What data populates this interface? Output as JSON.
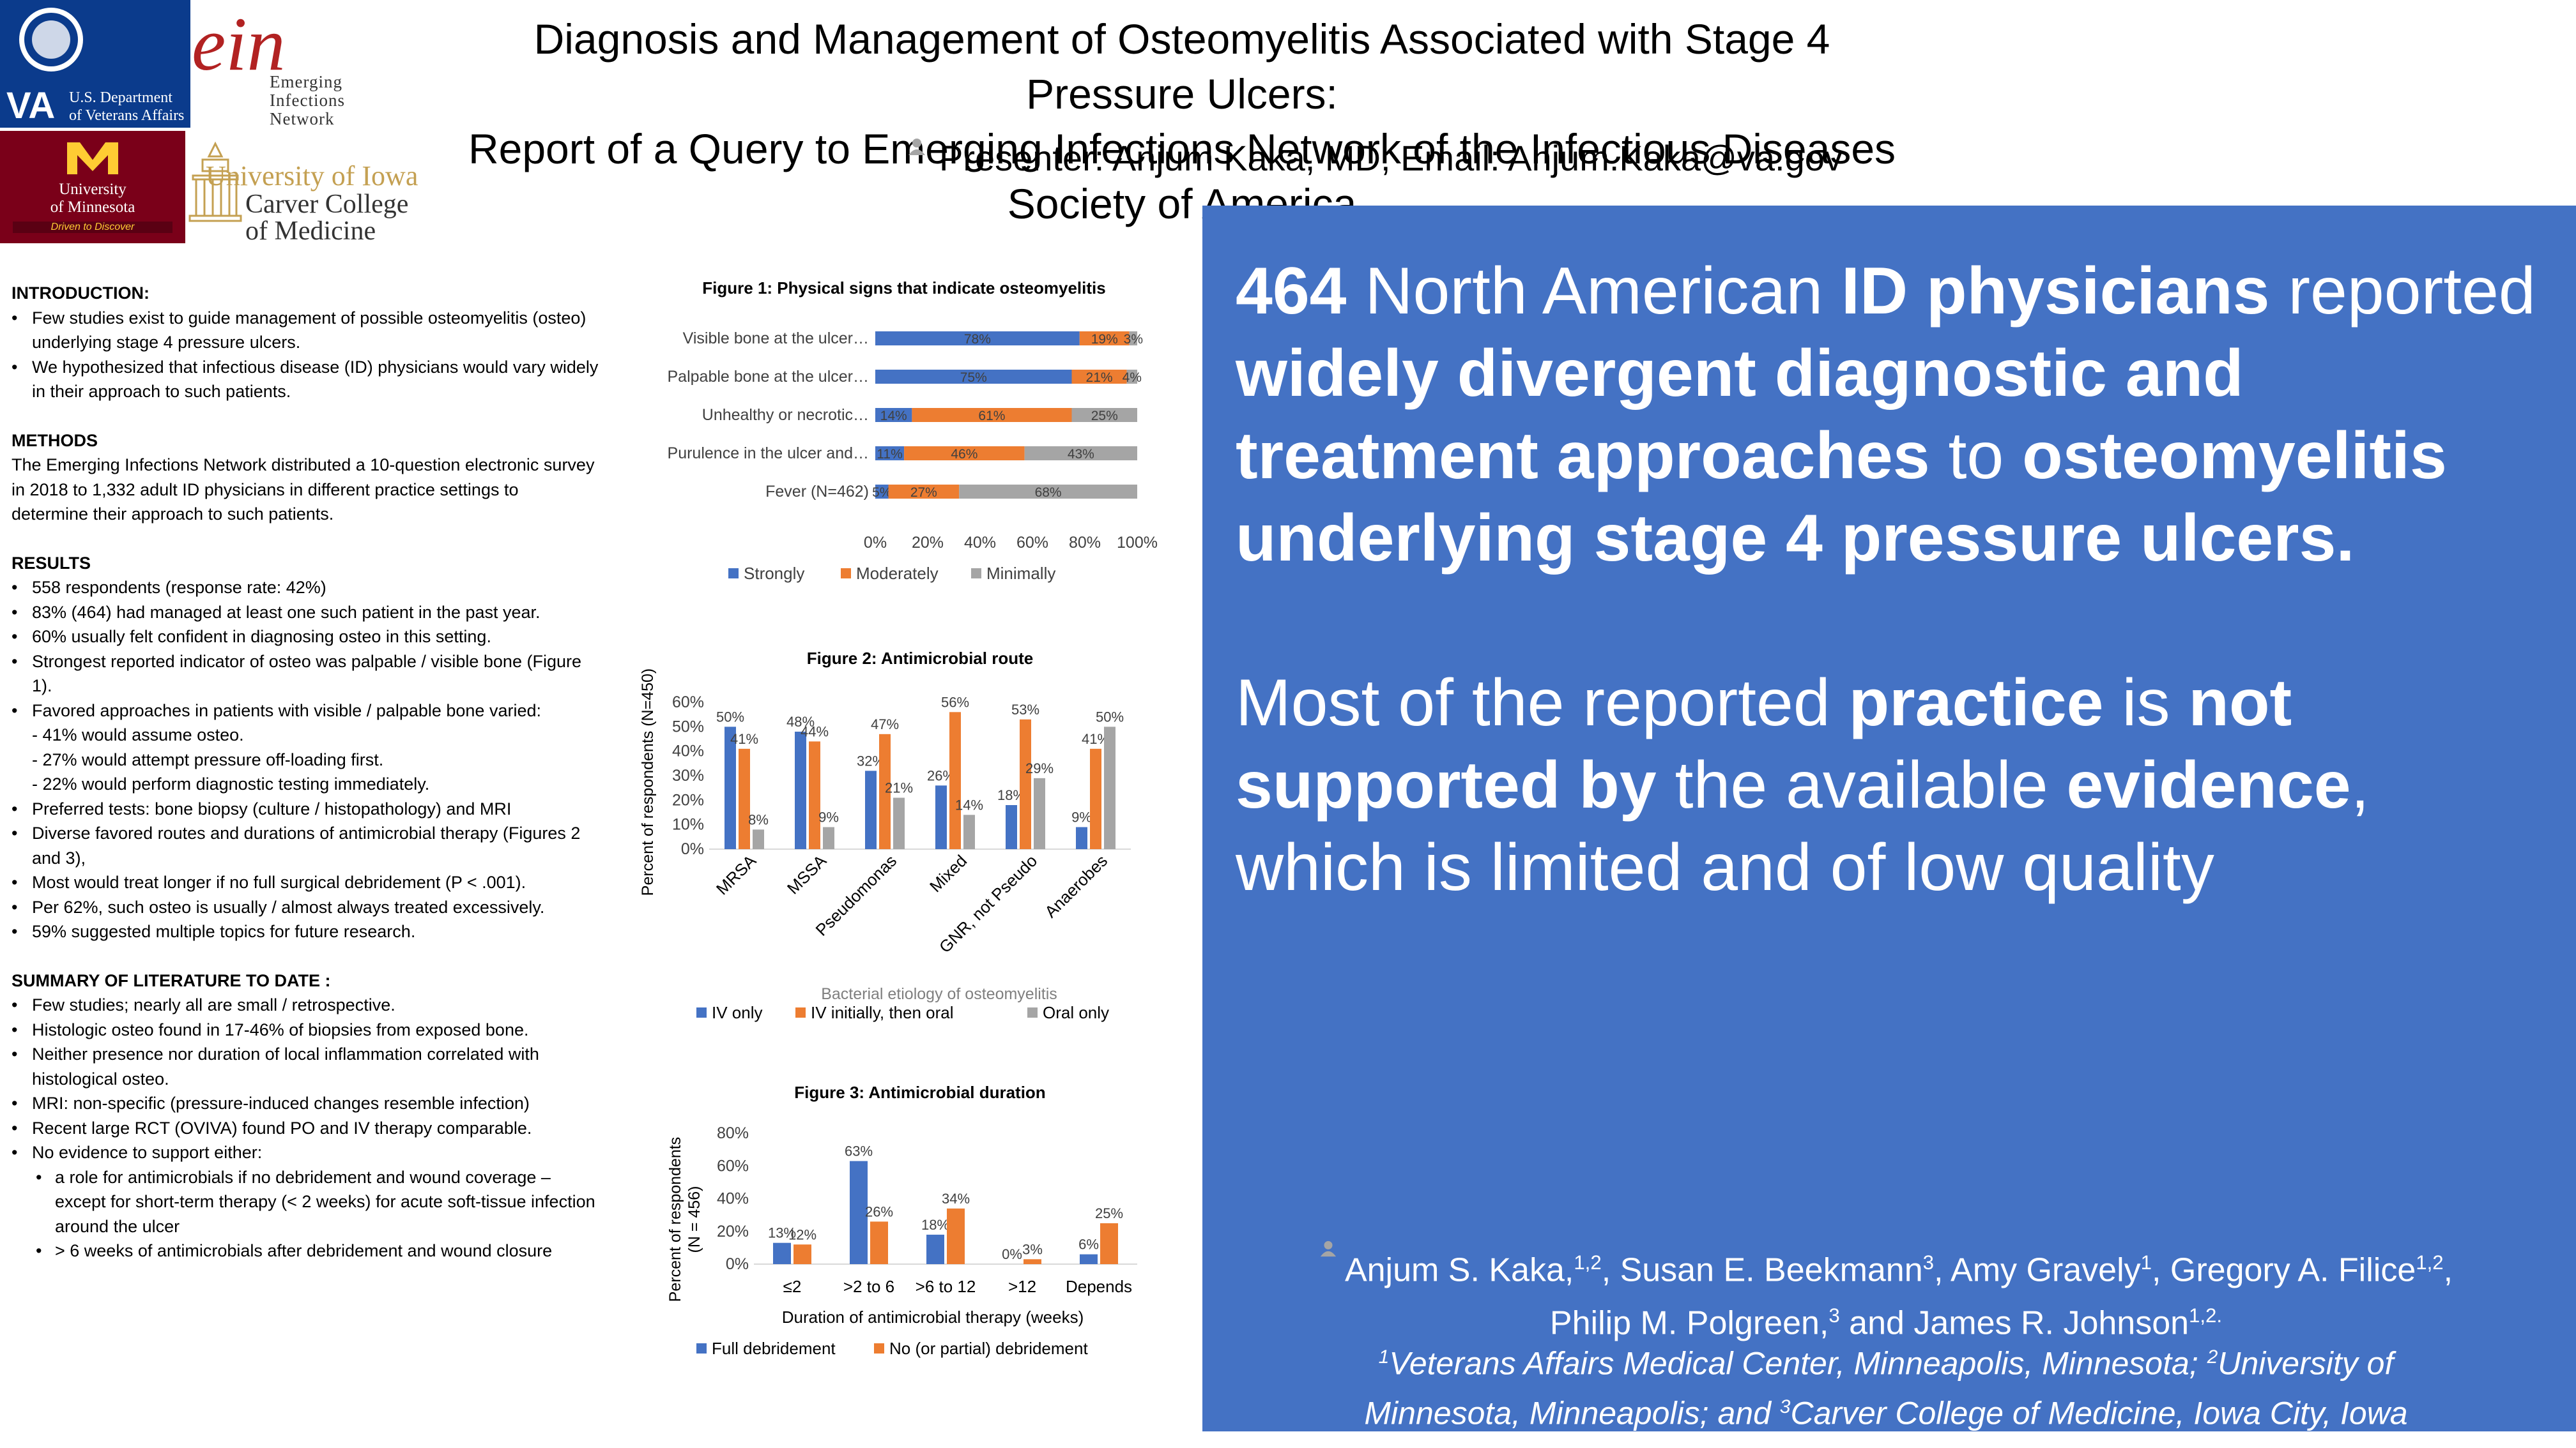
{
  "header": {
    "title_line1": "Diagnosis and Management of Osteomyelitis Associated with Stage 4 Pressure Ulcers:",
    "title_line2": "Report of a Query to Emerging Infections Network of the Infectious Diseases Society of America",
    "presenter": "Presenter: Anjum Kaka, MD; Email: Anjum.Kaka@va.gov"
  },
  "logos": {
    "va_short": "VA",
    "va_line1": "U.S. Department",
    "va_line2": "of Veterans Affairs",
    "ein_mark": "ein",
    "ein_line1": "Emerging",
    "ein_line2": "Infections",
    "ein_line3": "Network",
    "umn_line1": "University",
    "umn_line2": "of Minnesota",
    "umn_line3": "Driven to Discover",
    "iowa_line1": "University of Iowa",
    "iowa_line2": "Carver College",
    "iowa_line3": "of Medicine"
  },
  "left": {
    "intro_heading": "INTRODUCTION:",
    "intro": [
      "Few studies exist to guide management of  possible osteomyelitis (osteo) underlying stage 4 pressure ulcers.",
      "We hypothesized that infectious disease (ID) physicians would vary widely in their approach to such patients."
    ],
    "methods_heading": "METHODS",
    "methods": "The Emerging Infections Network distributed a 10-question electronic survey in 2018 to 1,332 adult ID physicians in different practice settings to determine their approach to such patients.",
    "results_heading": "RESULTS",
    "results": [
      "558 respondents (response rate: 42%)",
      "83% (464) had managed at least one such patient in the past year.",
      "60% usually felt confident in diagnosing osteo in this setting.",
      "Strongest reported indicator of osteo was palpable / visible bone (Figure 1).",
      "Favored approaches in patients with visible / palpable bone varied:"
    ],
    "results_dash": [
      "- 41% would assume osteo.",
      "- 27% would attempt pressure off-loading first.",
      "- 22% would perform diagnostic testing immediately."
    ],
    "results2": [
      "Preferred tests: bone biopsy (culture / histopathology) and MRI",
      "Diverse favored routes and durations of antimicrobial therapy (Figures 2 and 3),",
      "Most would treat longer if no full surgical debridement (P < .001).",
      "Per 62%, such osteo is usually / almost always treated excessively.",
      "59% suggested multiple topics for future research."
    ],
    "summary_heading": "SUMMARY OF LITERATURE TO DATE :",
    "summary": [
      "Few studies; nearly all are small / retrospective.",
      "Histologic osteo found in 17-46% of biopsies from exposed bone.",
      "Neither presence nor duration of local inflammation correlated with histological osteo.",
      "MRI: non-specific (pressure-induced changes resemble infection)",
      "Recent large RCT (OVIVA) found PO and IV therapy comparable.",
      "No evidence to support either:"
    ],
    "summary_sub": [
      "a role for antimicrobials if no debridement and wound coverage – except for short-term therapy (< 2 weeks) for acute soft-tissue infection around the ulcer",
      "> 6 weeks of  antimicrobials after debridement and wound closure"
    ]
  },
  "chart_data": [
    {
      "type": "bar",
      "orientation": "horizontal-stacked",
      "title": "Figure 1: Physical signs that indicate osteomyelitis",
      "categories": [
        "Visible bone at the ulcer…",
        "Palpable bone at the ulcer…",
        "Unhealthy or necrotic…",
        "Purulence in the ulcer and…",
        "Fever (N=462)"
      ],
      "series": [
        {
          "name": "Strongly",
          "color": "#4472c4",
          "values": [
            78,
            75,
            14,
            11,
            5
          ]
        },
        {
          "name": "Moderately",
          "color": "#ed7d31",
          "values": [
            19,
            21,
            61,
            46,
            27
          ]
        },
        {
          "name": "Minimally",
          "color": "#a5a5a5",
          "values": [
            3,
            4,
            25,
            43,
            68
          ]
        }
      ],
      "xticks": [
        "0%",
        "20%",
        "40%",
        "60%",
        "80%",
        "100%"
      ],
      "xlim": [
        0,
        100
      ],
      "legend_position": "bottom"
    },
    {
      "type": "bar",
      "orientation": "vertical-grouped",
      "title": "Figure 2: Antimicrobial route",
      "categories": [
        "MRSA",
        "MSSA",
        "Pseudomonas",
        "Mixed",
        "GNR, not Pseudo",
        "Anaerobes"
      ],
      "series": [
        {
          "name": "IV only",
          "color": "#4472c4",
          "values": [
            50,
            48,
            32,
            26,
            18,
            9
          ]
        },
        {
          "name": "IV initially, then oral",
          "color": "#ed7d31",
          "values": [
            41,
            44,
            47,
            56,
            53,
            41
          ]
        },
        {
          "name": "Oral only",
          "color": "#a5a5a5",
          "values": [
            8,
            9,
            21,
            14,
            29,
            50
          ]
        }
      ],
      "ylabel": "Percent of respondents (N=450)",
      "xlabel": "Bacterial etiology of osteomyelitis",
      "yticks": [
        "0%",
        "10%",
        "20%",
        "30%",
        "40%",
        "50%",
        "60%"
      ],
      "ylim": [
        0,
        60
      ],
      "legend_position": "bottom"
    },
    {
      "type": "bar",
      "orientation": "vertical-grouped",
      "title": "Figure 3: Antimicrobial duration",
      "categories": [
        "≤2",
        ">2 to 6",
        ">6  to 12",
        ">12",
        "Depends"
      ],
      "series": [
        {
          "name": "Full debridement",
          "color": "#4472c4",
          "values": [
            13,
            63,
            18,
            0,
            6
          ]
        },
        {
          "name": "No (or partial)  debridement",
          "color": "#ed7d31",
          "values": [
            12,
            26,
            34,
            3,
            25
          ]
        }
      ],
      "ylabel_line1": "Percent of respondents",
      "ylabel_line2": "(N = 456)",
      "xlabel": "Duration of antimicrobial therapy (weeks)",
      "yticks": [
        "0%",
        "20%",
        "40%",
        "60%",
        "80%"
      ],
      "ylim": [
        0,
        80
      ],
      "legend_position": "bottom"
    }
  ],
  "panel": {
    "m1a": "464",
    "m1b": " North American ",
    "m1c": "ID physicians",
    "m1d": " reported ",
    "m1e": "widely divergent diagnostic and treatment approaches",
    "m1f": " to ",
    "m1g": "osteomyelitis underlying stage 4 pressure ulcers.",
    "m2a": "Most of the reported ",
    "m2b": "practice",
    "m2c": " is ",
    "m2d": "not supported by",
    "m2e": " the available ",
    "m2f": "evidence",
    "m2g": ", which is limited and of low quality",
    "authors": {
      "a1": "Anjum S. Kaka,",
      "s1": "1,2",
      "a2": ", Susan E. Beekmann",
      "s2": "3",
      "a3": ", Amy Gravely",
      "s3": "1",
      "a4": ", Gregory A. Filice",
      "s4": "1,2",
      "a5": ",",
      "a6": "Philip M. Polgreen,",
      "s6": "3",
      "a7": "  and James R. Johnson",
      "s7": "1,2."
    },
    "affil": {
      "s1": "1",
      "t1": "Veterans Affairs Medical Center, Minneapolis, Minnesota; ",
      "s2": "2",
      "t2": "University of Minnesota, Minneapolis; and ",
      "s3": "3",
      "t3": "Carver College of Medicine, Iowa City, Iowa"
    }
  }
}
